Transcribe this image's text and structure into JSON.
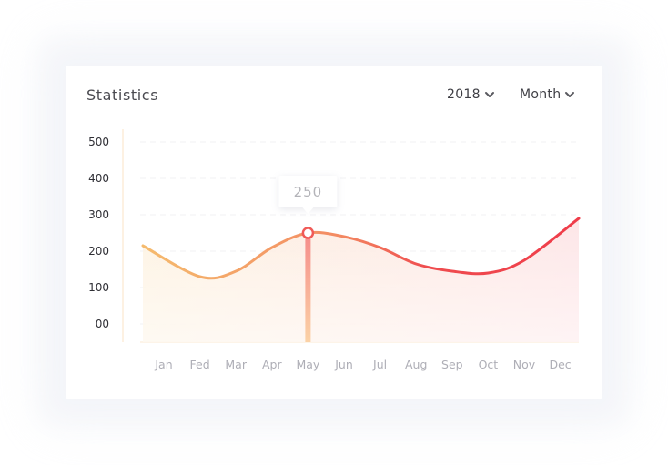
{
  "header": {
    "title": "Statistics",
    "year_label": "2018",
    "period_label": "Month"
  },
  "tooltip": {
    "value": "250"
  },
  "colors": {
    "line_start": "#f5bb6e",
    "line_end": "#ef3c4a",
    "marker_stroke": "#f05a57",
    "axis_line": "#fbe3c6"
  },
  "chart_data": {
    "type": "area",
    "categories": [
      "Jan",
      "Fed",
      "Mar",
      "Apr",
      "May",
      "Jun",
      "Jul",
      "Aug",
      "Sep",
      "Oct",
      "Nov",
      "Dec"
    ],
    "series": [
      {
        "values": [
          215,
          130,
          145,
          210,
          250,
          240,
          210,
          165,
          145,
          140,
          175,
          290
        ]
      }
    ],
    "y_ticks": [
      "00",
      "100",
      "200",
      "300",
      "400",
      "500"
    ],
    "ylim": [
      0,
      500
    ],
    "highlight_index": 4,
    "highlight_value": 250,
    "grid": true
  }
}
